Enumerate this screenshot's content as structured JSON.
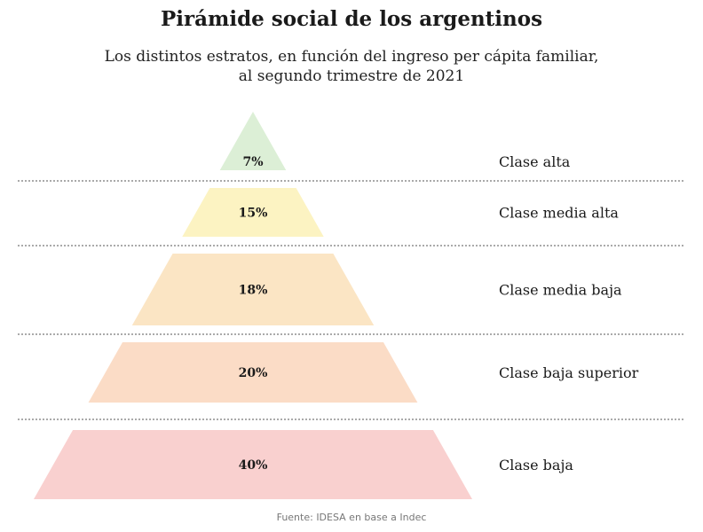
{
  "title": "Pirámide social de los argentinos",
  "subtitle_line1": "Los distintos estratos, en función del ingreso per cápita familiar,",
  "subtitle_line2": "al segundo trimestre de 2021",
  "source": "Fuente: IDESA en base a Indec",
  "chart_data": {
    "type": "pyramid",
    "unit": "%",
    "levels": [
      {
        "label": "Clase alta",
        "value": 7,
        "value_label": "7%",
        "color": "#dcefd6"
      },
      {
        "label": "Clase media alta",
        "value": 15,
        "value_label": "15%",
        "color": "#fcf3c2"
      },
      {
        "label": "Clase media baja",
        "value": 18,
        "value_label": "18%",
        "color": "#fbe5c4"
      },
      {
        "label": "Clase baja superior",
        "value": 20,
        "value_label": "20%",
        "color": "#fbdcc6"
      },
      {
        "label": "Clase baja",
        "value": 40,
        "value_label": "40%",
        "color": "#f9d0cf"
      }
    ]
  }
}
